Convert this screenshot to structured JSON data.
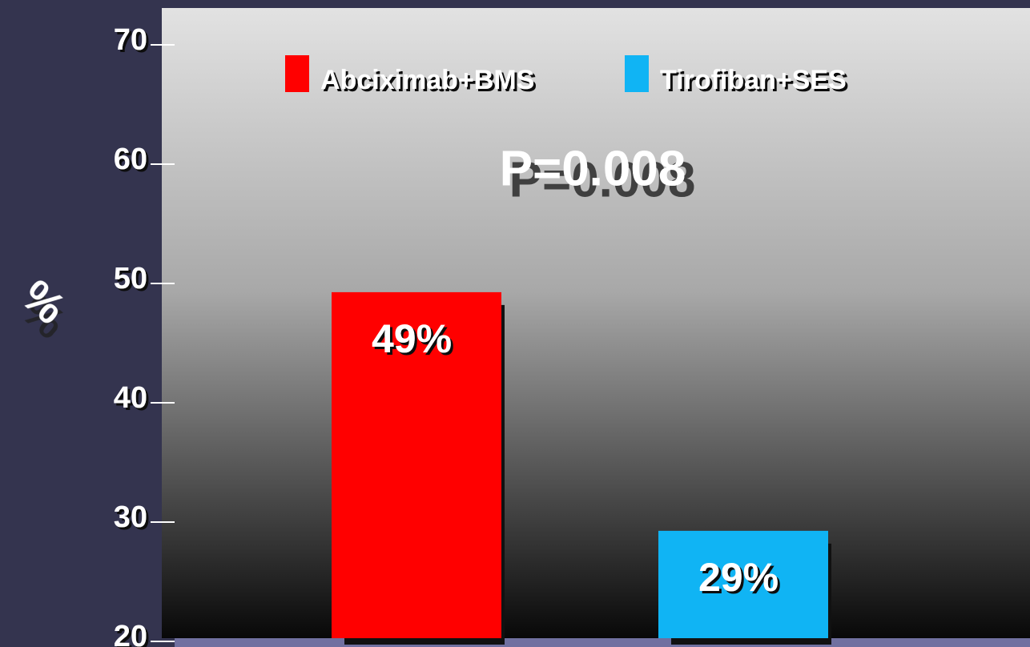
{
  "chart_data": {
    "type": "bar",
    "ylabel": "%",
    "annotation": "P=0.008",
    "categories": [
      null
    ],
    "series": [
      {
        "name": "Abciximab+BMS",
        "color": "#ff0000",
        "values": [
          49
        ],
        "value_labels": [
          "49%"
        ]
      },
      {
        "name": "Tirofiban+SES",
        "color": "#10b4f4",
        "values": [
          29
        ],
        "value_labels": [
          "29%"
        ]
      }
    ],
    "ylim": [
      20,
      70
    ],
    "yticks": [
      20,
      30,
      40,
      50,
      60,
      70
    ],
    "grid": false,
    "legend": "top"
  }
}
